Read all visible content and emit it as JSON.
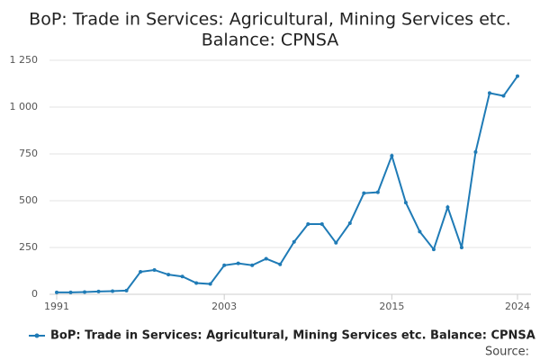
{
  "chart_data": {
    "type": "line",
    "title": [
      "BoP: Trade in Services: Agricultural, Mining Services etc.",
      "Balance: CPNSA"
    ],
    "x": [
      1991,
      1992,
      1993,
      1994,
      1995,
      1996,
      1997,
      1998,
      1999,
      2000,
      2001,
      2002,
      2003,
      2004,
      2005,
      2006,
      2007,
      2008,
      2009,
      2010,
      2011,
      2012,
      2013,
      2014,
      2015,
      2016,
      2017,
      2018,
      2019,
      2020,
      2021,
      2022,
      2023,
      2024
    ],
    "series": [
      {
        "name": "BoP: Trade in Services: Agricultural, Mining Services etc. Balance: CPNSA",
        "color": "#1f7bb6",
        "values": [
          10,
          10,
          12,
          15,
          17,
          20,
          120,
          130,
          105,
          95,
          60,
          55,
          155,
          165,
          155,
          190,
          160,
          280,
          375,
          375,
          275,
          380,
          540,
          545,
          740,
          490,
          335,
          240,
          465,
          250,
          760,
          1075,
          1060,
          1165
        ]
      }
    ],
    "xlim": [
      1991,
      2024
    ],
    "xticks": [
      1991,
      2003,
      2015,
      2024
    ],
    "ylim": [
      0,
      1250
    ],
    "yticks": [
      0,
      250,
      500,
      750,
      {
        "value": 1000,
        "label": "1 000"
      },
      {
        "value": 1250,
        "label": "1 250"
      }
    ],
    "grid": true,
    "legend": "bottom",
    "source": "Source:"
  }
}
